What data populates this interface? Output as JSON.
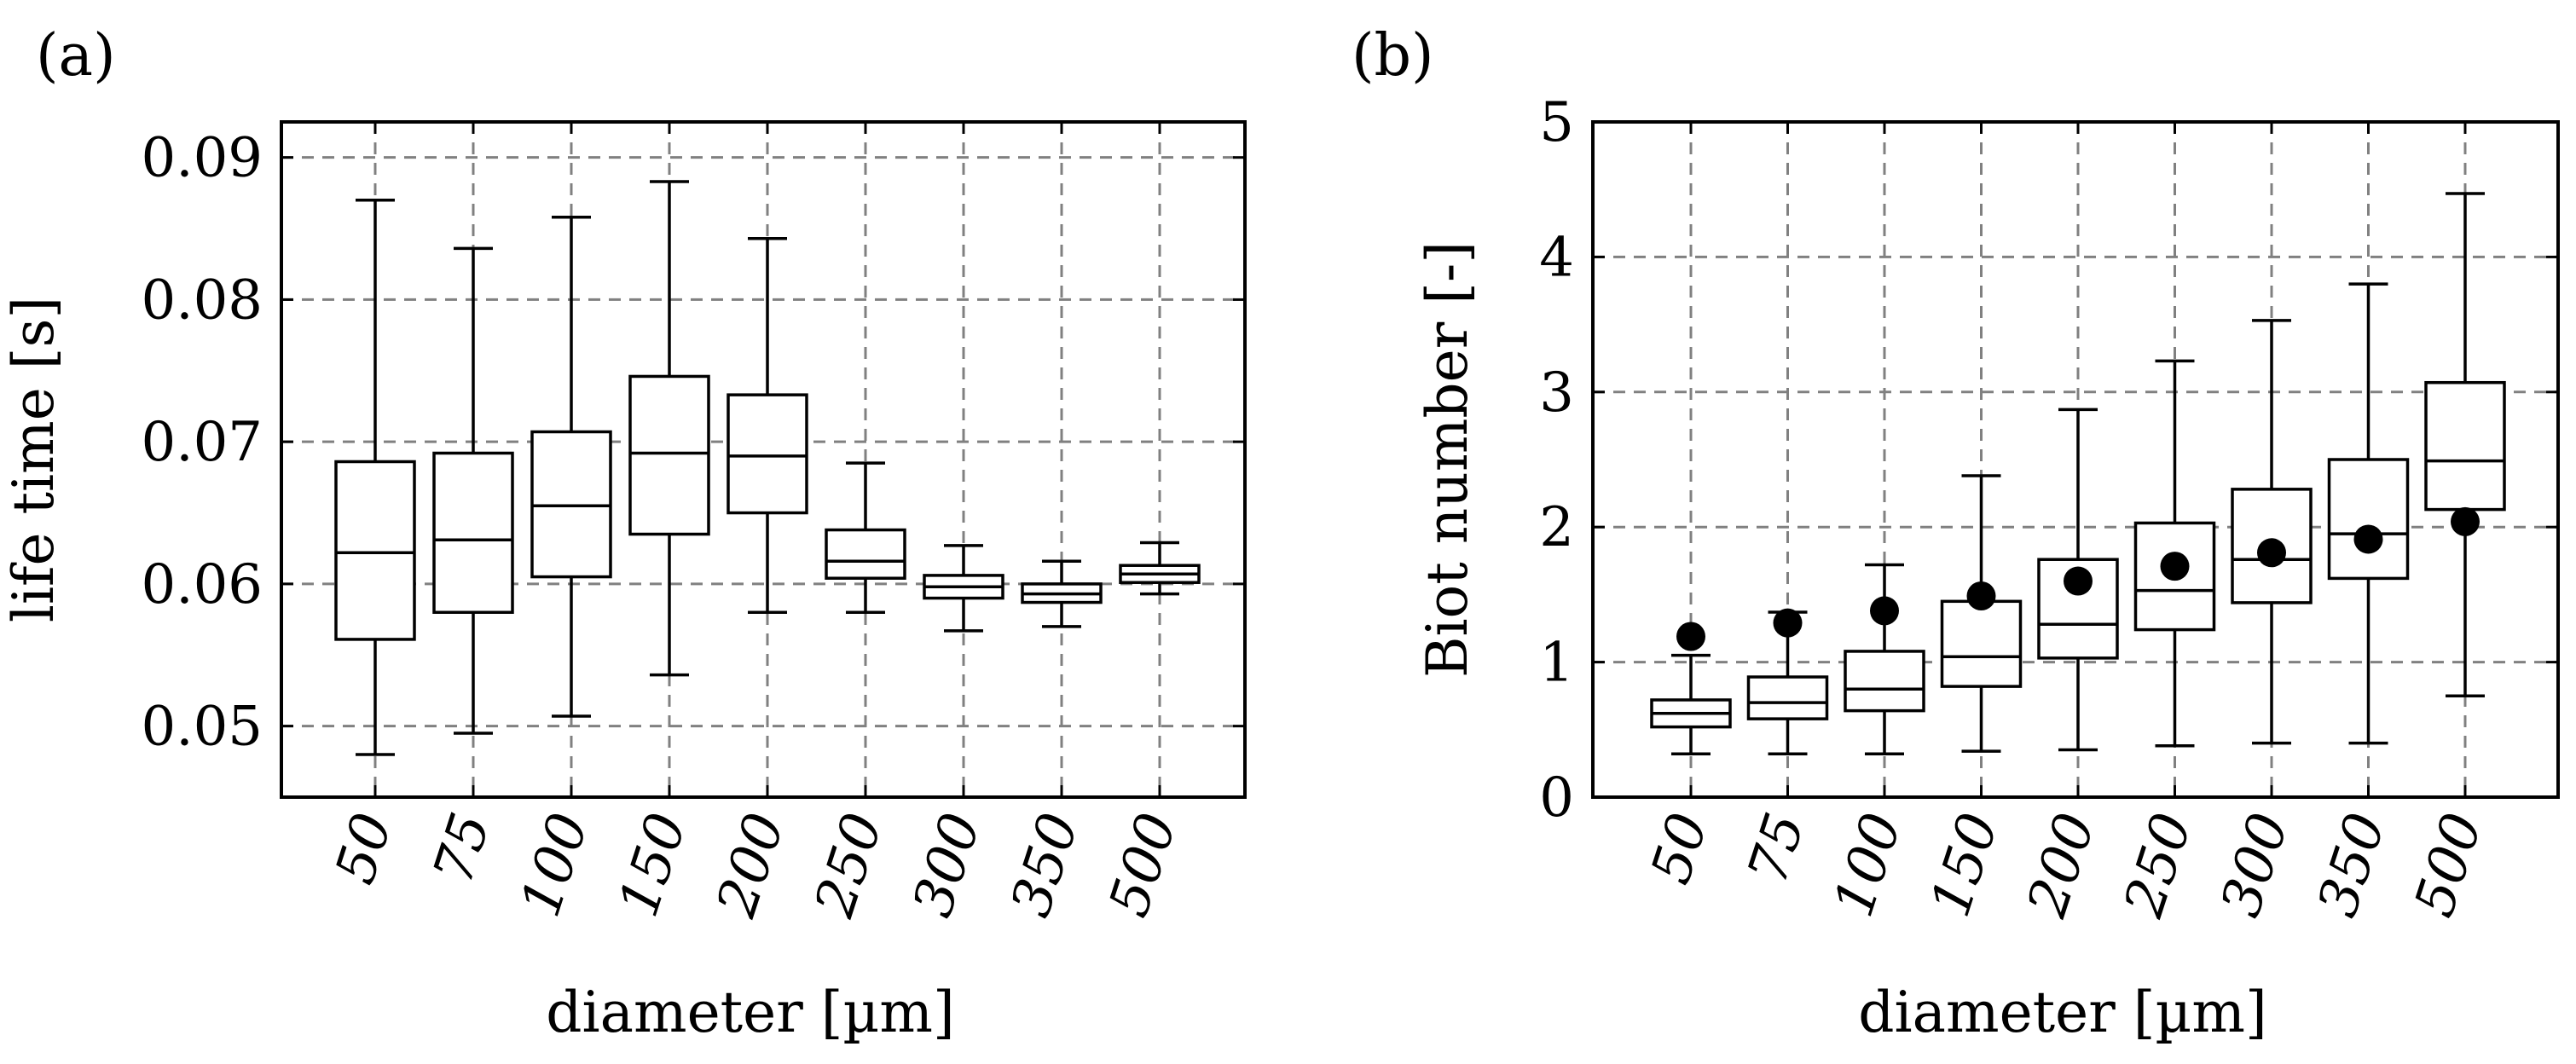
{
  "chart_data": [
    {
      "type": "boxplot",
      "panel_label": "(a)",
      "xlabel": "diameter [µm]",
      "ylabel": "life time [s]",
      "ylim": [
        0.045,
        0.0925
      ],
      "yticks": [
        0.05,
        0.06,
        0.07,
        0.08,
        0.09
      ],
      "ytick_labels": [
        "0.05",
        "0.06",
        "0.07",
        "0.08",
        "0.09"
      ],
      "grid": true,
      "categories": [
        "50",
        "75",
        "100",
        "150",
        "200",
        "250",
        "300",
        "350",
        "500"
      ],
      "boxes": [
        {
          "min": 0.048,
          "q1": 0.0561,
          "median": 0.0622,
          "q3": 0.0686,
          "max": 0.087
        },
        {
          "min": 0.0495,
          "q1": 0.058,
          "median": 0.0631,
          "q3": 0.0692,
          "max": 0.0836
        },
        {
          "min": 0.0507,
          "q1": 0.0605,
          "median": 0.0655,
          "q3": 0.0707,
          "max": 0.0858
        },
        {
          "min": 0.0536,
          "q1": 0.0635,
          "median": 0.0692,
          "q3": 0.0746,
          "max": 0.0883
        },
        {
          "min": 0.058,
          "q1": 0.065,
          "median": 0.069,
          "q3": 0.0733,
          "max": 0.0843
        },
        {
          "min": 0.058,
          "q1": 0.0604,
          "median": 0.0616,
          "q3": 0.0638,
          "max": 0.0685
        },
        {
          "min": 0.0567,
          "q1": 0.059,
          "median": 0.0598,
          "q3": 0.0606,
          "max": 0.0627
        },
        {
          "min": 0.057,
          "q1": 0.0587,
          "median": 0.0593,
          "q3": 0.06,
          "max": 0.0616
        },
        {
          "min": 0.0593,
          "q1": 0.0601,
          "median": 0.0607,
          "q3": 0.0613,
          "max": 0.0629
        }
      ]
    },
    {
      "type": "boxplot",
      "panel_label": "(b)",
      "xlabel": "diameter [µm]",
      "ylabel": "Biot number [-]",
      "ylim": [
        0,
        5
      ],
      "yticks": [
        0,
        1,
        2,
        3,
        4,
        5
      ],
      "ytick_labels": [
        "0",
        "1",
        "2",
        "3",
        "4",
        "5"
      ],
      "grid": true,
      "categories": [
        "50",
        "75",
        "100",
        "150",
        "200",
        "250",
        "300",
        "350",
        "500"
      ],
      "boxes": [
        {
          "min": 0.32,
          "q1": 0.52,
          "median": 0.62,
          "q3": 0.72,
          "max": 1.05
        },
        {
          "min": 0.32,
          "q1": 0.58,
          "median": 0.7,
          "q3": 0.89,
          "max": 1.37
        },
        {
          "min": 0.32,
          "q1": 0.64,
          "median": 0.8,
          "q3": 1.08,
          "max": 1.72
        },
        {
          "min": 0.34,
          "q1": 0.82,
          "median": 1.04,
          "q3": 1.45,
          "max": 2.38
        },
        {
          "min": 0.35,
          "q1": 1.03,
          "median": 1.28,
          "q3": 1.76,
          "max": 2.87
        },
        {
          "min": 0.38,
          "q1": 1.24,
          "median": 1.53,
          "q3": 2.03,
          "max": 3.23
        },
        {
          "min": 0.4,
          "q1": 1.44,
          "median": 1.76,
          "q3": 2.28,
          "max": 3.53
        },
        {
          "min": 0.4,
          "q1": 1.62,
          "median": 1.95,
          "q3": 2.5,
          "max": 3.8
        },
        {
          "min": 0.75,
          "q1": 2.13,
          "median": 2.49,
          "q3": 3.07,
          "max": 4.47
        }
      ],
      "points": [
        1.19,
        1.29,
        1.38,
        1.49,
        1.6,
        1.71,
        1.81,
        1.91,
        2.04
      ]
    }
  ]
}
